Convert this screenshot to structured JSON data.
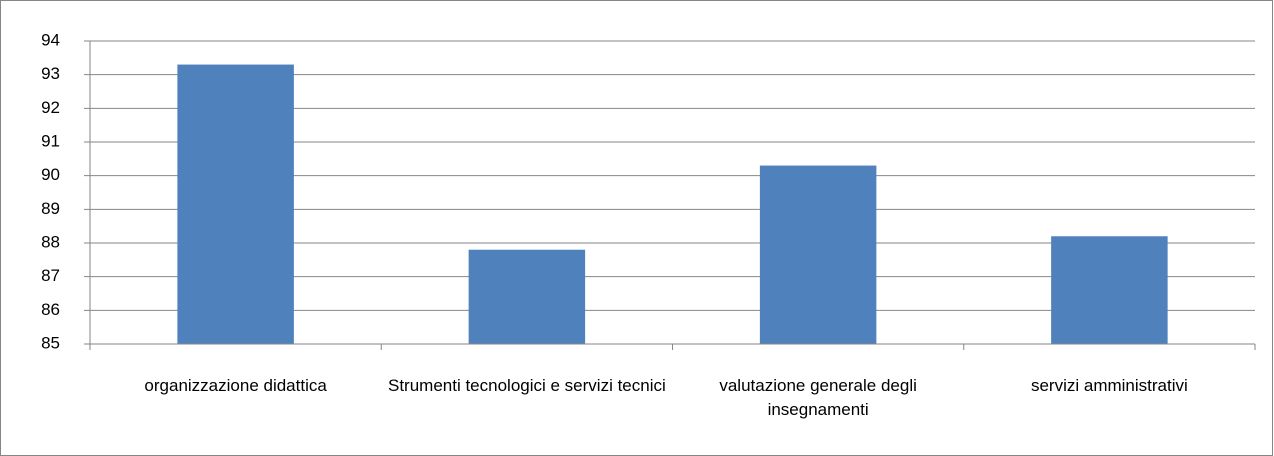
{
  "chart_data": {
    "type": "bar",
    "categories": [
      "organizzazione didattica",
      "Strumenti tecnologici e servizi tecnici",
      "valutazione generale degli insegnamenti",
      "servizi amministrativi"
    ],
    "values": [
      93.3,
      87.8,
      90.3,
      88.2
    ],
    "color": "#4f81bd",
    "ylim": [
      85,
      94
    ],
    "yticks": [
      85,
      86,
      87,
      88,
      89,
      90,
      91,
      92,
      93,
      94
    ],
    "grid": true
  }
}
